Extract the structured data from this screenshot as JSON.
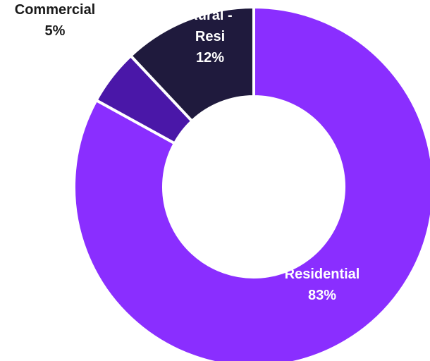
{
  "chart_data": {
    "type": "pie",
    "variant": "donut",
    "slices": [
      {
        "name": "Residential",
        "value": 83,
        "value_label": "83%",
        "color": "#8a2eff",
        "label_color": "#ffffff"
      },
      {
        "name": "Commercial",
        "value": 5,
        "value_label": "5%",
        "color": "#4a17a8",
        "label_color": "#1a1a1a"
      },
      {
        "name": "Rural -\nResi",
        "value": 12,
        "value_label": "12%",
        "color": "#1f1a3d",
        "label_color": "#ffffff"
      }
    ],
    "start": "top",
    "direction": "clockwise",
    "legend": "none"
  }
}
